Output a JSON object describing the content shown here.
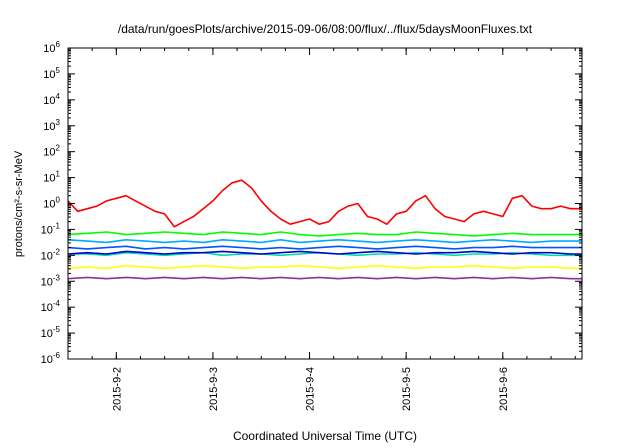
{
  "chart_data": {
    "type": "line",
    "title": "/data/run/goesPlots/archive/2015-09-06/08:00/flux/../flux/5daysMoonFluxes.txt",
    "xlabel": "Coordinated Universal Time (UTC)",
    "ylabel": "protons/cm²-s-sr-MeV",
    "y_scale": "log",
    "ylim_exponents": [
      -6,
      6
    ],
    "y_tick_exponents": [
      -6,
      -5,
      -4,
      -3,
      -2,
      -1,
      0,
      1,
      2,
      3,
      4,
      5,
      6
    ],
    "y_tick_labels": [
      "10-6",
      "10-5",
      "10-4",
      "10-3",
      "10-2",
      "10-1",
      "100",
      "101",
      "102",
      "103",
      "104",
      "105",
      "106"
    ],
    "x_unit": "days since 2015-09-01 00:00 UTC",
    "xlim": [
      1.0,
      6.32
    ],
    "x_ticks": [
      {
        "x": 1.5,
        "label": "2015-9-2"
      },
      {
        "x": 2.5,
        "label": "2015-9-3"
      },
      {
        "x": 3.5,
        "label": "2015-9-4"
      },
      {
        "x": 4.5,
        "label": "2015-9-5"
      },
      {
        "x": 5.5,
        "label": "2015-9-6"
      }
    ],
    "grid": false,
    "legend": "none",
    "series": [
      {
        "color": "#ff0000",
        "x": [
          1.0,
          1.1,
          1.2,
          1.3,
          1.4,
          1.5,
          1.6,
          1.7,
          1.8,
          1.9,
          2.0,
          2.1,
          2.2,
          2.3,
          2.4,
          2.5,
          2.6,
          2.7,
          2.8,
          2.9,
          3.0,
          3.1,
          3.2,
          3.3,
          3.4,
          3.5,
          3.6,
          3.7,
          3.8,
          3.9,
          4.0,
          4.1,
          4.2,
          4.3,
          4.4,
          4.5,
          4.6,
          4.7,
          4.8,
          4.9,
          5.0,
          5.1,
          5.2,
          5.3,
          5.4,
          5.5,
          5.6,
          5.7,
          5.8,
          5.9,
          6.0,
          6.1,
          6.2,
          6.32
        ],
        "log10_y": [
          0.1,
          -0.3,
          -0.2,
          -0.1,
          0.1,
          0.2,
          0.3,
          0.1,
          -0.1,
          -0.3,
          -0.4,
          -0.9,
          -0.7,
          -0.5,
          -0.2,
          0.1,
          0.5,
          0.8,
          0.9,
          0.6,
          0.1,
          -0.3,
          -0.6,
          -0.8,
          -0.7,
          -0.6,
          -0.8,
          -0.7,
          -0.3,
          -0.1,
          0.0,
          -0.5,
          -0.6,
          -0.8,
          -0.4,
          -0.3,
          0.1,
          0.3,
          -0.2,
          -0.5,
          -0.6,
          -0.7,
          -0.4,
          -0.3,
          -0.4,
          -0.5,
          0.2,
          0.3,
          -0.1,
          -0.2,
          -0.2,
          -0.1,
          -0.2,
          -0.2
        ]
      },
      {
        "color": "#00ff00",
        "x": [
          1.0,
          1.2,
          1.4,
          1.6,
          1.8,
          2.0,
          2.2,
          2.4,
          2.6,
          2.8,
          3.0,
          3.2,
          3.4,
          3.6,
          3.8,
          4.0,
          4.2,
          4.4,
          4.6,
          4.8,
          5.0,
          5.2,
          5.4,
          5.6,
          5.8,
          6.0,
          6.2,
          6.32
        ],
        "log10_y": [
          -1.2,
          -1.15,
          -1.1,
          -1.2,
          -1.15,
          -1.1,
          -1.15,
          -1.2,
          -1.1,
          -1.15,
          -1.2,
          -1.1,
          -1.2,
          -1.25,
          -1.2,
          -1.15,
          -1.2,
          -1.2,
          -1.1,
          -1.15,
          -1.2,
          -1.25,
          -1.2,
          -1.15,
          -1.2,
          -1.2,
          -1.2,
          -1.2
        ]
      },
      {
        "color": "#00aaff",
        "x": [
          1.0,
          1.2,
          1.4,
          1.6,
          1.8,
          2.0,
          2.2,
          2.4,
          2.6,
          2.8,
          3.0,
          3.2,
          3.4,
          3.6,
          3.8,
          4.0,
          4.2,
          4.4,
          4.6,
          4.8,
          5.0,
          5.2,
          5.4,
          5.6,
          5.8,
          6.0,
          6.2,
          6.32
        ],
        "log10_y": [
          -1.4,
          -1.45,
          -1.5,
          -1.4,
          -1.45,
          -1.5,
          -1.45,
          -1.5,
          -1.4,
          -1.45,
          -1.5,
          -1.4,
          -1.5,
          -1.45,
          -1.4,
          -1.45,
          -1.5,
          -1.45,
          -1.4,
          -1.45,
          -1.5,
          -1.45,
          -1.4,
          -1.45,
          -1.5,
          -1.45,
          -1.45,
          -1.45
        ]
      },
      {
        "color": "#0055ff",
        "x": [
          1.0,
          1.2,
          1.4,
          1.6,
          1.8,
          2.0,
          2.2,
          2.4,
          2.6,
          2.8,
          3.0,
          3.2,
          3.4,
          3.6,
          3.8,
          4.0,
          4.2,
          4.4,
          4.6,
          4.8,
          5.0,
          5.2,
          5.4,
          5.6,
          5.8,
          6.0,
          6.2,
          6.32
        ],
        "log10_y": [
          -1.7,
          -1.75,
          -1.7,
          -1.65,
          -1.75,
          -1.7,
          -1.75,
          -1.7,
          -1.65,
          -1.7,
          -1.75,
          -1.7,
          -1.75,
          -1.7,
          -1.65,
          -1.7,
          -1.75,
          -1.7,
          -1.65,
          -1.7,
          -1.75,
          -1.7,
          -1.7,
          -1.65,
          -1.7,
          -1.7,
          -1.7,
          -1.7
        ]
      },
      {
        "color": "#00ddaa",
        "x": [
          1.0,
          1.2,
          1.4,
          1.6,
          1.8,
          2.0,
          2.2,
          2.4,
          2.6,
          2.8,
          3.0,
          3.2,
          3.4,
          3.6,
          3.8,
          4.0,
          4.2,
          4.4,
          4.6,
          4.8,
          5.0,
          5.2,
          5.4,
          5.6,
          5.8,
          6.0,
          6.2,
          6.32
        ],
        "log10_y": [
          -1.95,
          -1.95,
          -2.0,
          -1.9,
          -1.95,
          -2.0,
          -1.95,
          -1.9,
          -2.0,
          -1.95,
          -1.95,
          -2.0,
          -1.95,
          -1.9,
          -1.95,
          -2.0,
          -1.95,
          -1.95,
          -1.9,
          -1.95,
          -2.0,
          -1.95,
          -1.95,
          -1.9,
          -1.95,
          -2.0,
          -2.0,
          -2.0
        ]
      },
      {
        "color": "#0000cc",
        "x": [
          1.0,
          1.2,
          1.4,
          1.6,
          1.8,
          2.0,
          2.2,
          2.4,
          2.6,
          2.8,
          3.0,
          3.2,
          3.4,
          3.6,
          3.8,
          4.0,
          4.2,
          4.4,
          4.6,
          4.8,
          5.0,
          5.2,
          5.4,
          5.6,
          5.8,
          6.0,
          6.2,
          6.32
        ],
        "log10_y": [
          -1.95,
          -1.9,
          -1.95,
          -1.85,
          -1.9,
          -1.95,
          -1.9,
          -1.9,
          -1.85,
          -1.9,
          -1.95,
          -1.9,
          -1.85,
          -1.9,
          -1.95,
          -1.9,
          -1.85,
          -1.9,
          -1.95,
          -1.9,
          -1.9,
          -1.85,
          -1.9,
          -1.95,
          -1.9,
          -1.9,
          -1.95,
          -1.95
        ]
      },
      {
        "color": "#ffff00",
        "x": [
          1.0,
          1.2,
          1.4,
          1.6,
          1.8,
          2.0,
          2.2,
          2.4,
          2.6,
          2.8,
          3.0,
          3.2,
          3.4,
          3.6,
          3.8,
          4.0,
          4.2,
          4.4,
          4.6,
          4.8,
          5.0,
          5.2,
          5.4,
          5.6,
          5.8,
          6.0,
          6.2,
          6.32
        ],
        "log10_y": [
          -2.5,
          -2.45,
          -2.5,
          -2.4,
          -2.45,
          -2.5,
          -2.45,
          -2.4,
          -2.45,
          -2.5,
          -2.45,
          -2.45,
          -2.4,
          -2.45,
          -2.5,
          -2.45,
          -2.4,
          -2.45,
          -2.5,
          -2.45,
          -2.45,
          -2.4,
          -2.45,
          -2.5,
          -2.45,
          -2.45,
          -2.5,
          -2.5
        ]
      },
      {
        "color": "#883399",
        "x": [
          1.0,
          1.2,
          1.4,
          1.6,
          1.8,
          2.0,
          2.2,
          2.4,
          2.6,
          2.8,
          3.0,
          3.2,
          3.4,
          3.6,
          3.8,
          4.0,
          4.2,
          4.4,
          4.6,
          4.8,
          5.0,
          5.2,
          5.4,
          5.6,
          5.8,
          6.0,
          6.2,
          6.32
        ],
        "log10_y": [
          -2.9,
          -2.85,
          -2.9,
          -2.85,
          -2.9,
          -2.85,
          -2.9,
          -2.85,
          -2.9,
          -2.85,
          -2.9,
          -2.85,
          -2.9,
          -2.85,
          -2.9,
          -2.85,
          -2.9,
          -2.85,
          -2.9,
          -2.85,
          -2.9,
          -2.85,
          -2.9,
          -2.85,
          -2.9,
          -2.85,
          -2.9,
          -2.9
        ]
      }
    ]
  }
}
